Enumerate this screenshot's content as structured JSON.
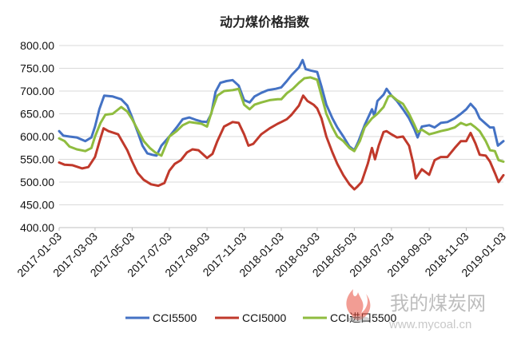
{
  "chart_data": {
    "type": "line",
    "title": "动力煤价格指数",
    "xlabel": "",
    "ylabel": "",
    "ylim": [
      400,
      800
    ],
    "yticks": [
      "400.00",
      "450.00",
      "500.00",
      "550.00",
      "600.00",
      "650.00",
      "700.00",
      "750.00",
      "800.00"
    ],
    "x_range": [
      "2017-01-03",
      "2019-01-03"
    ],
    "xticks": [
      "2017-01-03",
      "2017-03-03",
      "2017-05-03",
      "2017-07-03",
      "2017-09-03",
      "2017-11-03",
      "2018-01-03",
      "2018-03-03",
      "2018-05-03",
      "2018-07-03",
      "2018-09-03",
      "2018-11-03",
      "2019-01-03"
    ],
    "grid": "horizontal",
    "legend_position": "bottom",
    "series": [
      {
        "name": "CCI5500",
        "color": "#4472c4",
        "points": [
          [
            "2017-01-03",
            612
          ],
          [
            "2017-01-10",
            602
          ],
          [
            "2017-01-20",
            600
          ],
          [
            "2017-02-01",
            598
          ],
          [
            "2017-02-15",
            590
          ],
          [
            "2017-02-25",
            598
          ],
          [
            "2017-03-03",
            622
          ],
          [
            "2017-03-10",
            660
          ],
          [
            "2017-03-18",
            690
          ],
          [
            "2017-04-01",
            688
          ],
          [
            "2017-04-15",
            682
          ],
          [
            "2017-04-25",
            668
          ],
          [
            "2017-05-03",
            642
          ],
          [
            "2017-05-12",
            610
          ],
          [
            "2017-05-20",
            580
          ],
          [
            "2017-05-28",
            563
          ],
          [
            "2017-06-05",
            560
          ],
          [
            "2017-06-12",
            558
          ],
          [
            "2017-06-20",
            580
          ],
          [
            "2017-07-03",
            600
          ],
          [
            "2017-07-15",
            620
          ],
          [
            "2017-07-25",
            638
          ],
          [
            "2017-08-05",
            642
          ],
          [
            "2017-08-15",
            637
          ],
          [
            "2017-08-25",
            633
          ],
          [
            "2017-09-03",
            632
          ],
          [
            "2017-09-10",
            650
          ],
          [
            "2017-09-17",
            698
          ],
          [
            "2017-09-25",
            718
          ],
          [
            "2017-10-05",
            722
          ],
          [
            "2017-10-15",
            724
          ],
          [
            "2017-10-25",
            712
          ],
          [
            "2017-11-03",
            680
          ],
          [
            "2017-11-12",
            675
          ],
          [
            "2017-11-20",
            688
          ],
          [
            "2017-12-01",
            696
          ],
          [
            "2017-12-12",
            702
          ],
          [
            "2017-12-25",
            705
          ],
          [
            "2018-01-03",
            708
          ],
          [
            "2018-01-12",
            722
          ],
          [
            "2018-01-20",
            735
          ],
          [
            "2018-02-01",
            752
          ],
          [
            "2018-02-07",
            768
          ],
          [
            "2018-02-12",
            748
          ],
          [
            "2018-02-20",
            745
          ],
          [
            "2018-03-03",
            742
          ],
          [
            "2018-03-10",
            710
          ],
          [
            "2018-03-18",
            670
          ],
          [
            "2018-03-28",
            640
          ],
          [
            "2018-04-05",
            620
          ],
          [
            "2018-04-15",
            600
          ],
          [
            "2018-04-25",
            578
          ],
          [
            "2018-05-03",
            570
          ],
          [
            "2018-05-10",
            590
          ],
          [
            "2018-05-20",
            625
          ],
          [
            "2018-06-01",
            660
          ],
          [
            "2018-06-05",
            645
          ],
          [
            "2018-06-10",
            678
          ],
          [
            "2018-06-20",
            692
          ],
          [
            "2018-06-25",
            705
          ],
          [
            "2018-07-03",
            690
          ],
          [
            "2018-07-12",
            678
          ],
          [
            "2018-07-22",
            660
          ],
          [
            "2018-08-01",
            640
          ],
          [
            "2018-08-10",
            615
          ],
          [
            "2018-08-15",
            598
          ],
          [
            "2018-08-22",
            622
          ],
          [
            "2018-09-03",
            625
          ],
          [
            "2018-09-12",
            620
          ],
          [
            "2018-09-22",
            630
          ],
          [
            "2018-10-03",
            632
          ],
          [
            "2018-10-15",
            640
          ],
          [
            "2018-10-25",
            650
          ],
          [
            "2018-11-03",
            660
          ],
          [
            "2018-11-10",
            672
          ],
          [
            "2018-11-18",
            660
          ],
          [
            "2018-11-25",
            640
          ],
          [
            "2018-12-05",
            628
          ],
          [
            "2018-12-12",
            620
          ],
          [
            "2018-12-18",
            620
          ],
          [
            "2018-12-25",
            580
          ],
          [
            "2019-01-03",
            590
          ]
        ]
      },
      {
        "name": "CCI5000",
        "color": "#c0392b",
        "points": [
          [
            "2017-01-03",
            543
          ],
          [
            "2017-01-12",
            538
          ],
          [
            "2017-01-25",
            537
          ],
          [
            "2017-02-10",
            530
          ],
          [
            "2017-02-20",
            533
          ],
          [
            "2017-03-03",
            555
          ],
          [
            "2017-03-10",
            588
          ],
          [
            "2017-03-17",
            618
          ],
          [
            "2017-03-25",
            612
          ],
          [
            "2017-04-10",
            605
          ],
          [
            "2017-04-25",
            570
          ],
          [
            "2017-05-03",
            545
          ],
          [
            "2017-05-12",
            520
          ],
          [
            "2017-05-22",
            505
          ],
          [
            "2017-06-03",
            495
          ],
          [
            "2017-06-15",
            492
          ],
          [
            "2017-06-25",
            498
          ],
          [
            "2017-07-03",
            525
          ],
          [
            "2017-07-12",
            540
          ],
          [
            "2017-07-22",
            548
          ],
          [
            "2017-08-01",
            565
          ],
          [
            "2017-08-10",
            572
          ],
          [
            "2017-08-20",
            570
          ],
          [
            "2017-09-03",
            553
          ],
          [
            "2017-09-12",
            562
          ],
          [
            "2017-09-20",
            590
          ],
          [
            "2017-10-01",
            622
          ],
          [
            "2017-10-15",
            632
          ],
          [
            "2017-10-25",
            630
          ],
          [
            "2017-11-03",
            605
          ],
          [
            "2017-11-10",
            580
          ],
          [
            "2017-11-18",
            584
          ],
          [
            "2017-12-01",
            605
          ],
          [
            "2017-12-15",
            618
          ],
          [
            "2017-12-28",
            628
          ],
          [
            "2018-01-03",
            632
          ],
          [
            "2018-01-12",
            638
          ],
          [
            "2018-01-20",
            648
          ],
          [
            "2018-02-01",
            668
          ],
          [
            "2018-02-08",
            690
          ],
          [
            "2018-02-15",
            678
          ],
          [
            "2018-02-25",
            670
          ],
          [
            "2018-03-03",
            662
          ],
          [
            "2018-03-10",
            640
          ],
          [
            "2018-03-18",
            600
          ],
          [
            "2018-03-28",
            565
          ],
          [
            "2018-04-05",
            540
          ],
          [
            "2018-04-15",
            515
          ],
          [
            "2018-04-25",
            495
          ],
          [
            "2018-05-03",
            484
          ],
          [
            "2018-05-08",
            490
          ],
          [
            "2018-05-15",
            500
          ],
          [
            "2018-05-25",
            540
          ],
          [
            "2018-06-01",
            575
          ],
          [
            "2018-06-06",
            550
          ],
          [
            "2018-06-12",
            580
          ],
          [
            "2018-06-20",
            610
          ],
          [
            "2018-06-25",
            612
          ],
          [
            "2018-07-03",
            605
          ],
          [
            "2018-07-12",
            598
          ],
          [
            "2018-07-22",
            600
          ],
          [
            "2018-08-01",
            580
          ],
          [
            "2018-08-08",
            540
          ],
          [
            "2018-08-12",
            508
          ],
          [
            "2018-08-22",
            528
          ],
          [
            "2018-09-03",
            516
          ],
          [
            "2018-09-12",
            548
          ],
          [
            "2018-09-22",
            555
          ],
          [
            "2018-10-03",
            555
          ],
          [
            "2018-10-15",
            575
          ],
          [
            "2018-10-25",
            590
          ],
          [
            "2018-11-03",
            590
          ],
          [
            "2018-11-10",
            608
          ],
          [
            "2018-11-18",
            585
          ],
          [
            "2018-11-25",
            560
          ],
          [
            "2018-12-05",
            558
          ],
          [
            "2018-12-12",
            545
          ],
          [
            "2018-12-20",
            520
          ],
          [
            "2018-12-26",
            500
          ],
          [
            "2019-01-03",
            515
          ]
        ]
      },
      {
        "name": "CCI进口5500",
        "color": "#8fbc3f",
        "points": [
          [
            "2017-01-03",
            596
          ],
          [
            "2017-01-12",
            590
          ],
          [
            "2017-01-20",
            578
          ],
          [
            "2017-02-01",
            572
          ],
          [
            "2017-02-15",
            568
          ],
          [
            "2017-02-25",
            575
          ],
          [
            "2017-03-03",
            600
          ],
          [
            "2017-03-12",
            630
          ],
          [
            "2017-03-20",
            648
          ],
          [
            "2017-04-01",
            650
          ],
          [
            "2017-04-15",
            665
          ],
          [
            "2017-04-25",
            655
          ],
          [
            "2017-05-03",
            638
          ],
          [
            "2017-05-12",
            615
          ],
          [
            "2017-05-22",
            590
          ],
          [
            "2017-06-01",
            575
          ],
          [
            "2017-06-10",
            565
          ],
          [
            "2017-06-20",
            558
          ],
          [
            "2017-07-03",
            600
          ],
          [
            "2017-07-15",
            612
          ],
          [
            "2017-07-25",
            625
          ],
          [
            "2017-08-05",
            632
          ],
          [
            "2017-08-15",
            630
          ],
          [
            "2017-08-25",
            628
          ],
          [
            "2017-09-03",
            622
          ],
          [
            "2017-09-12",
            660
          ],
          [
            "2017-09-20",
            690
          ],
          [
            "2017-10-01",
            700
          ],
          [
            "2017-10-15",
            702
          ],
          [
            "2017-10-25",
            705
          ],
          [
            "2017-11-03",
            670
          ],
          [
            "2017-11-12",
            660
          ],
          [
            "2017-11-20",
            670
          ],
          [
            "2017-12-01",
            675
          ],
          [
            "2017-12-15",
            680
          ],
          [
            "2017-12-28",
            682
          ],
          [
            "2018-01-03",
            682
          ],
          [
            "2018-01-12",
            695
          ],
          [
            "2018-01-22",
            705
          ],
          [
            "2018-02-01",
            718
          ],
          [
            "2018-02-10",
            728
          ],
          [
            "2018-02-20",
            730
          ],
          [
            "2018-03-03",
            725
          ],
          [
            "2018-03-10",
            690
          ],
          [
            "2018-03-18",
            650
          ],
          [
            "2018-03-28",
            620
          ],
          [
            "2018-04-05",
            600
          ],
          [
            "2018-04-15",
            590
          ],
          [
            "2018-04-25",
            575
          ],
          [
            "2018-05-03",
            568
          ],
          [
            "2018-05-12",
            590
          ],
          [
            "2018-05-20",
            620
          ],
          [
            "2018-06-01",
            640
          ],
          [
            "2018-06-10",
            650
          ],
          [
            "2018-06-20",
            665
          ],
          [
            "2018-06-28",
            688
          ],
          [
            "2018-07-03",
            690
          ],
          [
            "2018-07-12",
            680
          ],
          [
            "2018-07-22",
            672
          ],
          [
            "2018-08-01",
            650
          ],
          [
            "2018-08-10",
            625
          ],
          [
            "2018-08-15",
            610
          ],
          [
            "2018-08-22",
            615
          ],
          [
            "2018-09-03",
            605
          ],
          [
            "2018-09-12",
            608
          ],
          [
            "2018-09-22",
            612
          ],
          [
            "2018-10-03",
            615
          ],
          [
            "2018-10-15",
            620
          ],
          [
            "2018-10-25",
            630
          ],
          [
            "2018-11-03",
            625
          ],
          [
            "2018-11-10",
            628
          ],
          [
            "2018-11-18",
            620
          ],
          [
            "2018-11-25",
            612
          ],
          [
            "2018-12-05",
            590
          ],
          [
            "2018-12-12",
            570
          ],
          [
            "2018-12-20",
            568
          ],
          [
            "2018-12-26",
            548
          ],
          [
            "2019-01-03",
            545
          ]
        ]
      }
    ]
  },
  "watermark": {
    "chinese": "我的煤炭网",
    "url": "www.mycoal.cn"
  }
}
